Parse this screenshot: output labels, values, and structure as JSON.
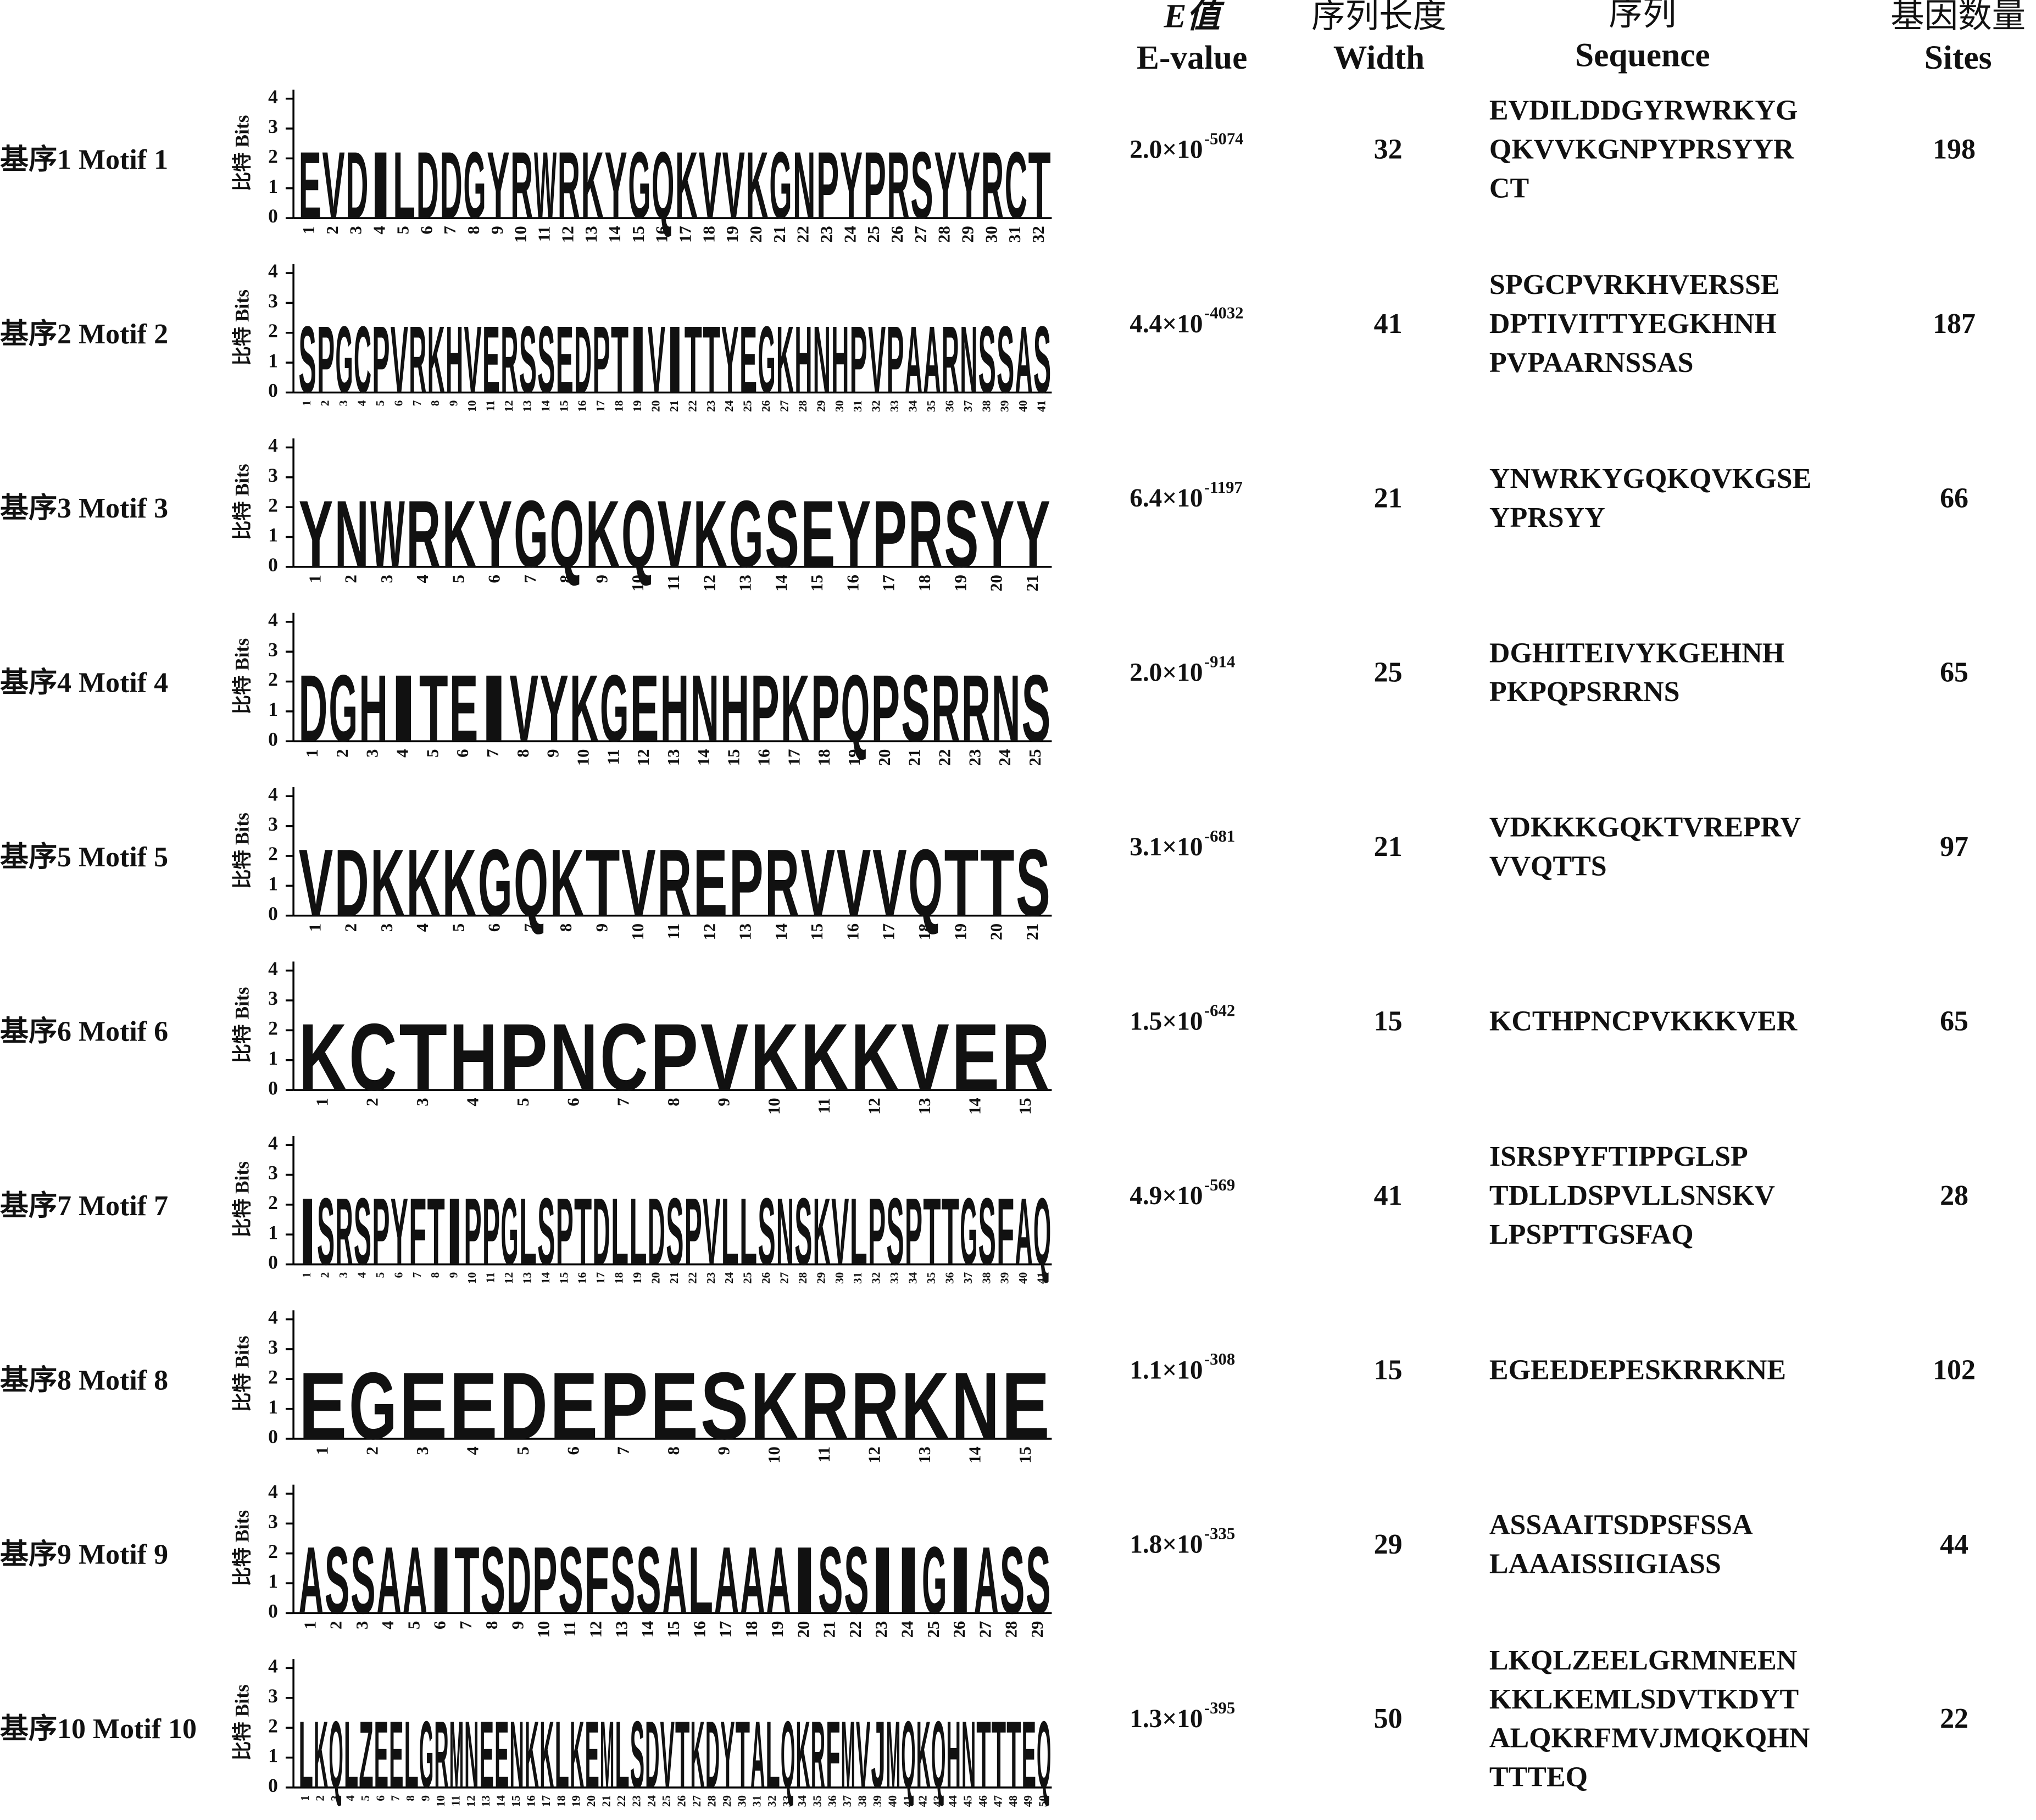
{
  "header": {
    "evalue_zh": "E值",
    "evalue_en": "E-value",
    "width_zh": "序列长度",
    "width_en": "Width",
    "seq_zh": "序列",
    "seq_en": "Sequence",
    "sites_zh": "基因数量",
    "sites_en": "Sites"
  },
  "logo_y_label": "比特 Bits",
  "logo_ylim": [
    0,
    4.3
  ],
  "logo_yticks": [
    0,
    1,
    2,
    3,
    4
  ],
  "logo_positions": [
    1,
    2,
    3,
    4,
    5,
    6,
    7,
    8,
    9,
    10,
    11,
    12,
    13,
    14,
    15,
    16,
    17,
    18,
    19,
    20,
    21,
    22,
    23,
    24,
    25,
    26,
    27,
    28,
    29,
    30,
    31,
    32,
    33,
    34,
    35,
    36,
    37,
    38,
    39,
    40,
    41,
    42,
    43,
    44,
    45,
    46,
    47,
    48,
    49,
    50
  ],
  "motifs": [
    {
      "label": "基序1 Motif 1",
      "evalue": {
        "mantissa": "2.0×10",
        "exponent": "-5074"
      },
      "width": 32,
      "sequence": [
        "EVDILDDGYRWRKYG",
        "QKVVKGNPYPRSYYR",
        "CT"
      ],
      "sites": 198
    },
    {
      "label": "基序2 Motif 2",
      "evalue": {
        "mantissa": "4.4×10",
        "exponent": "-4032"
      },
      "width": 41,
      "sequence": [
        "SPGCPVRKHVERSSE",
        "DPTIVITTYEGKHNH",
        "PVPAARNSSAS"
      ],
      "sites": 187
    },
    {
      "label": "基序3 Motif 3",
      "evalue": {
        "mantissa": "6.4×10",
        "exponent": "-1197"
      },
      "width": 21,
      "sequence": [
        "YNWRKYGQKQVKGSE",
        "YPRSYY"
      ],
      "sites": 66
    },
    {
      "label": "基序4 Motif 4",
      "evalue": {
        "mantissa": "2.0×10",
        "exponent": "-914"
      },
      "width": 25,
      "sequence": [
        "DGHITEIVYKGEHNH",
        "PKPQPSRRNS"
      ],
      "sites": 65
    },
    {
      "label": "基序5 Motif 5",
      "evalue": {
        "mantissa": "3.1×10",
        "exponent": "-681"
      },
      "width": 21,
      "sequence": [
        "VDKKKGQKTVREPRV",
        "VVQTTS"
      ],
      "sites": 97
    },
    {
      "label": "基序6 Motif 6",
      "evalue": {
        "mantissa": "1.5×10",
        "exponent": "-642"
      },
      "width": 15,
      "sequence": [
        "KCTHPNCPVKKKVER"
      ],
      "sites": 65
    },
    {
      "label": "基序7 Motif 7",
      "evalue": {
        "mantissa": "4.9×10",
        "exponent": "-569"
      },
      "width": 41,
      "sequence": [
        "ISRSPYFTIPPGLSP",
        "TDLLDSPVLLSNSKV",
        "LPSPTTGSFAQ"
      ],
      "sites": 28
    },
    {
      "label": "基序8 Motif 8",
      "evalue": {
        "mantissa": "1.1×10",
        "exponent": "-308"
      },
      "width": 15,
      "sequence": [
        "EGEEDEPESKRRKNE"
      ],
      "sites": 102
    },
    {
      "label": "基序9 Motif 9",
      "evalue": {
        "mantissa": "1.8×10",
        "exponent": "-335"
      },
      "width": 29,
      "sequence": [
        "ASSAAITSDPSFSSA",
        "LAAAISSIIGIASS"
      ],
      "sites": 44
    },
    {
      "label": "基序10 Motif 10",
      "evalue": {
        "mantissa": "1.3×10",
        "exponent": "-395"
      },
      "width": 50,
      "sequence": [
        "LKQLZEELGRMNEEN",
        "KKLKEMLSDVTKDYT",
        "ALQKRFMVJMQKQHN",
        "TTTEQ"
      ],
      "sites": 22
    }
  ]
}
